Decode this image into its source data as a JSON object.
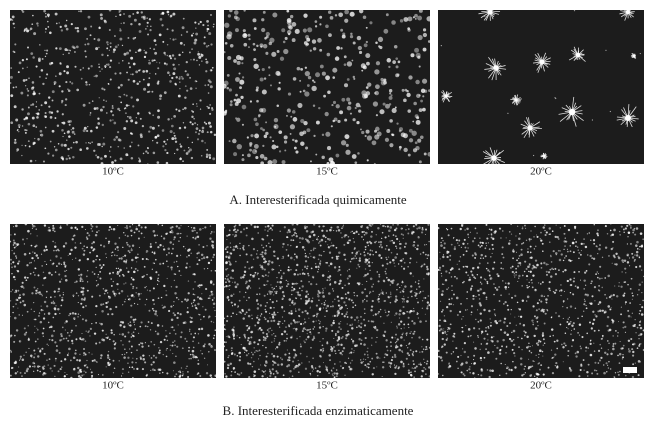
{
  "panels": [
    {
      "caption": "A. Interesterificada quimicamente",
      "images": [
        {
          "label": "10ºC"
        },
        {
          "label": "15ºC"
        },
        {
          "label": "20ºC"
        }
      ]
    },
    {
      "caption": "B. Interesterificada enzimaticamente",
      "images": [
        {
          "label": "10ºC"
        },
        {
          "label": "15ºC"
        },
        {
          "label": "20ºC"
        }
      ]
    }
  ]
}
